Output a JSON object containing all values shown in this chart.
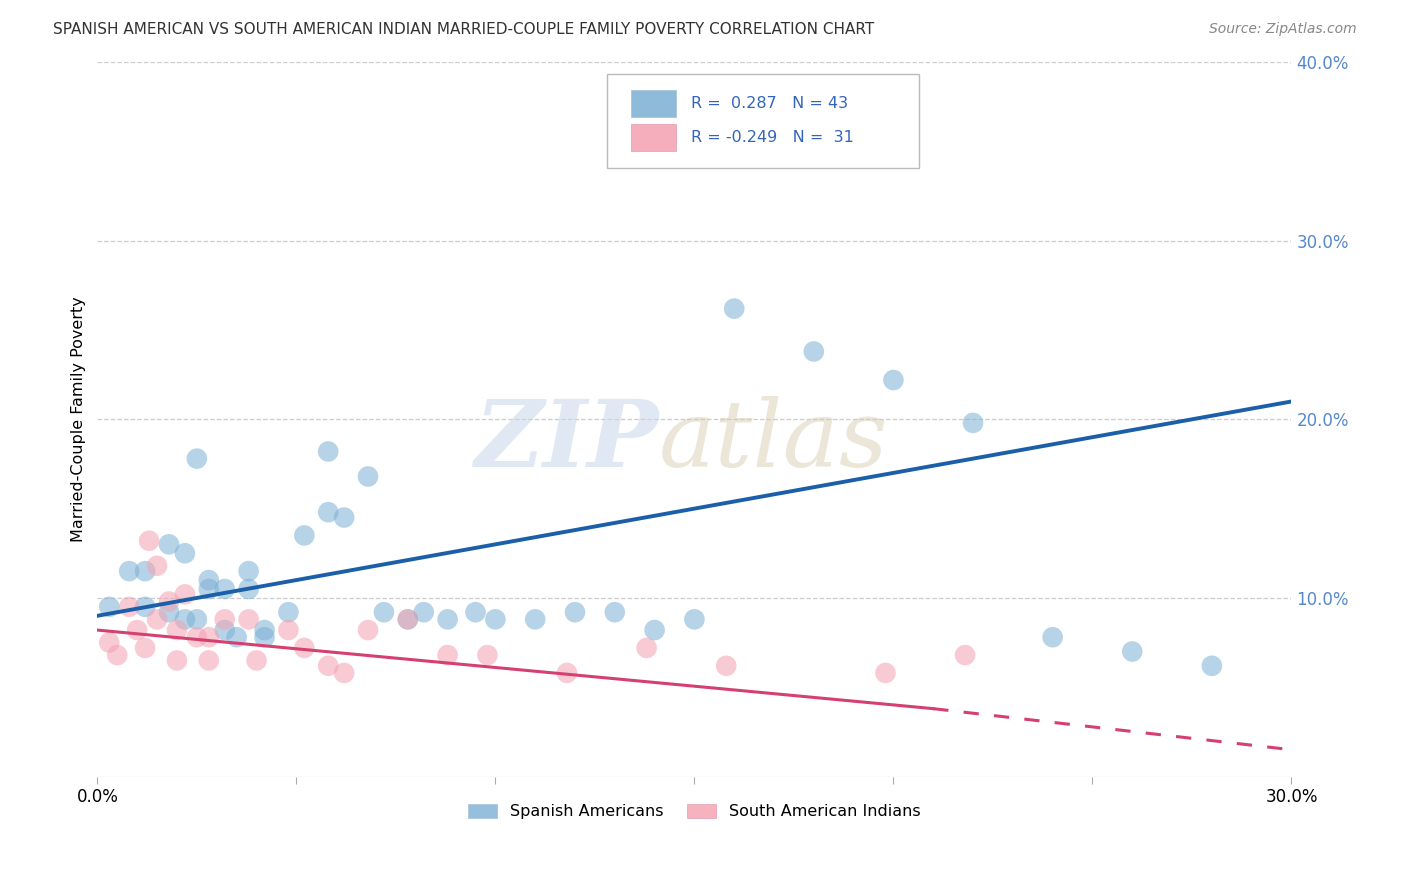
{
  "title": "SPANISH AMERICAN VS SOUTH AMERICAN INDIAN MARRIED-COUPLE FAMILY POVERTY CORRELATION CHART",
  "source": "Source: ZipAtlas.com",
  "ylabel": "Married-Couple Family Poverty",
  "xlim": [
    0.0,
    0.3
  ],
  "ylim": [
    0.0,
    0.4
  ],
  "ytick_positions_right": [
    0.1,
    0.2,
    0.3,
    0.4
  ],
  "R_blue": 0.287,
  "N_blue": 43,
  "R_pink": -0.249,
  "N_pink": 31,
  "blue_color": "#7BAFD4",
  "pink_color": "#F4A0B0",
  "line_blue": "#1A5FA8",
  "line_pink": "#D44070",
  "blue_points_x": [
    0.003,
    0.008,
    0.012,
    0.012,
    0.018,
    0.018,
    0.022,
    0.022,
    0.025,
    0.028,
    0.028,
    0.032,
    0.032,
    0.035,
    0.038,
    0.038,
    0.042,
    0.042,
    0.048,
    0.052,
    0.058,
    0.062,
    0.068,
    0.072,
    0.078,
    0.082,
    0.088,
    0.095,
    0.1,
    0.11,
    0.12,
    0.13,
    0.14,
    0.15,
    0.16,
    0.18,
    0.2,
    0.22,
    0.24,
    0.26,
    0.28,
    0.025,
    0.058
  ],
  "blue_points_y": [
    0.095,
    0.115,
    0.115,
    0.095,
    0.13,
    0.092,
    0.125,
    0.088,
    0.088,
    0.11,
    0.105,
    0.105,
    0.082,
    0.078,
    0.115,
    0.105,
    0.082,
    0.078,
    0.092,
    0.135,
    0.148,
    0.145,
    0.168,
    0.092,
    0.088,
    0.092,
    0.088,
    0.092,
    0.088,
    0.088,
    0.092,
    0.092,
    0.082,
    0.088,
    0.262,
    0.238,
    0.222,
    0.198,
    0.078,
    0.07,
    0.062,
    0.178,
    0.182
  ],
  "pink_points_x": [
    0.003,
    0.005,
    0.008,
    0.01,
    0.012,
    0.013,
    0.015,
    0.015,
    0.018,
    0.02,
    0.02,
    0.022,
    0.025,
    0.028,
    0.028,
    0.032,
    0.038,
    0.04,
    0.048,
    0.052,
    0.058,
    0.062,
    0.068,
    0.078,
    0.088,
    0.098,
    0.118,
    0.138,
    0.158,
    0.198,
    0.218
  ],
  "pink_points_y": [
    0.075,
    0.068,
    0.095,
    0.082,
    0.072,
    0.132,
    0.118,
    0.088,
    0.098,
    0.082,
    0.065,
    0.102,
    0.078,
    0.078,
    0.065,
    0.088,
    0.088,
    0.065,
    0.082,
    0.072,
    0.062,
    0.058,
    0.082,
    0.088,
    0.068,
    0.068,
    0.058,
    0.072,
    0.062,
    0.058,
    0.068
  ],
  "blue_line_x0": 0.0,
  "blue_line_y0": 0.09,
  "blue_line_x1": 0.3,
  "blue_line_y1": 0.21,
  "pink_line_x0": 0.0,
  "pink_line_y0": 0.082,
  "pink_line_x1_solid": 0.21,
  "pink_line_y1_solid": 0.038,
  "pink_line_x1_dash": 0.3,
  "pink_line_y1_dash": 0.015,
  "legend_labels": [
    "Spanish Americans",
    "South American Indians"
  ],
  "background_color": "#FFFFFF",
  "grid_color": "#CCCCCC"
}
